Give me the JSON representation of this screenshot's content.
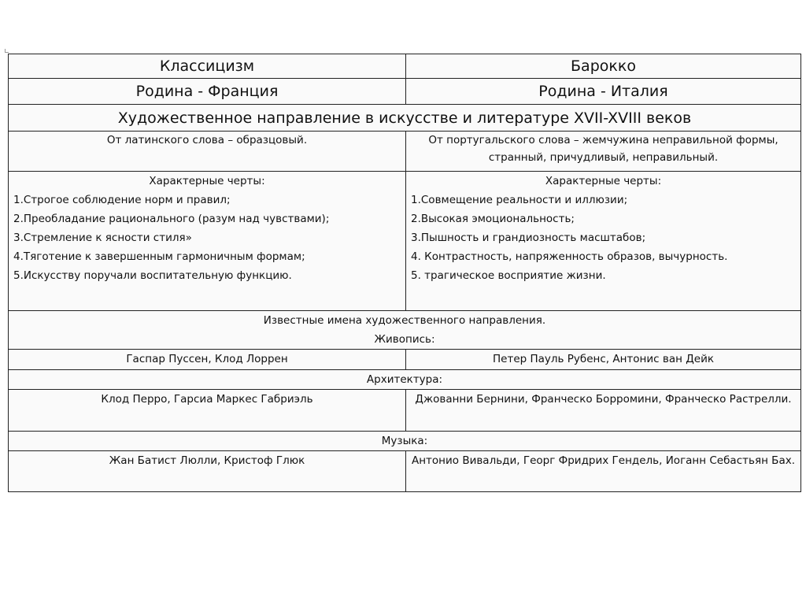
{
  "table": {
    "headers": [
      "Классицизм",
      "Барокко"
    ],
    "homeland": [
      "Родина - Франция",
      "Родина - Италия"
    ],
    "definition": "Художественное направление в искусстве и литературе XVII-XVIII веков",
    "etymology": [
      "От латинского слова – образцовый.",
      "От португальского слова – жемчужина неправильной формы, странный, причудливый, неправильный."
    ],
    "features_title": "Характерные черты:",
    "classicism_features": [
      "1.Строгое соблюдение норм и правил;",
      "2.Преобладание рационального (разум над чувствами);",
      "3.Стремление к ясности стиля»",
      "4.Тяготение к завершенным гармоничным формам;",
      "5.Искусству поручали воспитательную функцию."
    ],
    "baroque_features": [
      "1.Совмещение реальности и иллюзии;",
      "2.Высокая эмоциональность;",
      "3.Пышность и грандиозность масштабов;",
      "4. Контрастность, напряженность образов, вычурность.",
      "5. трагическое восприятие жизни."
    ],
    "famous_names": "Известные имена художественного направления.",
    "painting_label": "Живопись:",
    "painting": [
      "Гаспар Пуссен, Клод Лоррен",
      "Петер Пауль Рубенс, Антонис ван Дейк"
    ],
    "architecture_label": "Архитектура:",
    "architecture": [
      "Клод Перро, Гарсиа Маркес Габриэль",
      "Джованни Бернини, Франческо Борромини, Франческо Растрелли."
    ],
    "music_label": "Музыка:",
    "music": [
      "Жан Батист Люлли, Кристоф Глюк",
      "Антонио Вивальди, Георг Фридрих Гендель, Иоганн Себастьян Бах."
    ]
  }
}
